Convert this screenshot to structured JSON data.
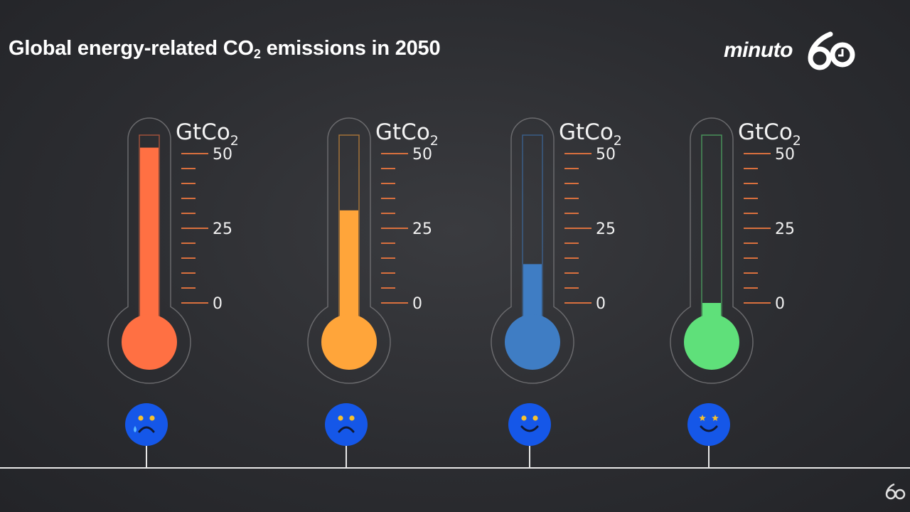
{
  "header": {
    "title_main": "Global energy-related CO",
    "title_sub": "2",
    "title_rest": " emissions in 2050"
  },
  "brand": {
    "logo_text": "minuto",
    "logo_mark": "60",
    "corner_mark": "60"
  },
  "chart_data": {
    "type": "bar",
    "title": "Global energy-related CO2 emissions in 2050",
    "unit_label": "GtCo",
    "unit_sub": "2",
    "ylim": [
      0,
      50
    ],
    "tick_labels": [
      "50",
      "25",
      "0"
    ],
    "tick_values": [
      50,
      25,
      0
    ],
    "minor_tick_step": 5,
    "series": [
      {
        "values": [
          52.0,
          31.0,
          13.0,
          0.0
        ]
      }
    ],
    "colors": [
      "#ff7043",
      "#ffa53a",
      "#3f7dc4",
      "#5fe07a"
    ],
    "tick_color": "#d9703e",
    "faces": [
      "sad-crying-face-icon",
      "sad-face-icon",
      "smiling-face-icon",
      "star-eyed-face-icon"
    ],
    "face_color": "#1557e8",
    "face_feature_color": "#f6c12e"
  }
}
